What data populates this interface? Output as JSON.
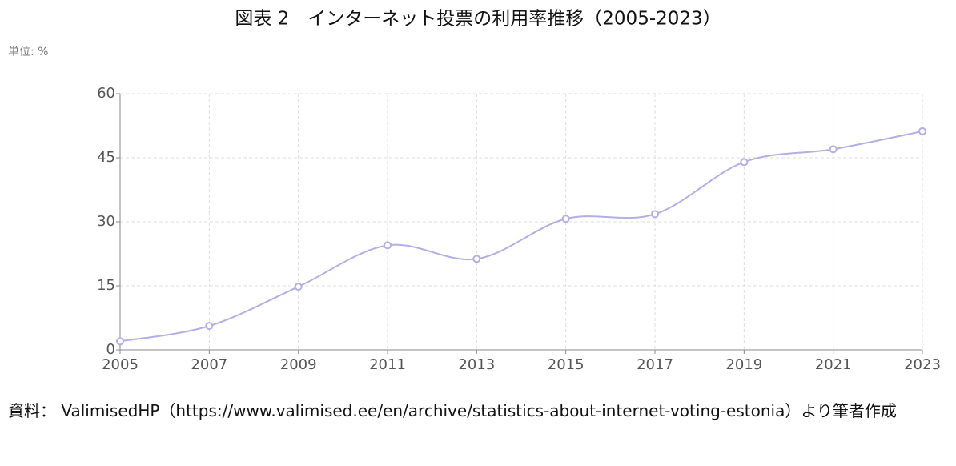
{
  "chart_data": {
    "type": "line",
    "title": "図表 2　インターネット投票の利用率推移（2005-2023）",
    "unit_label": "単位: %",
    "source": "資料： ValimisedHP（https://www.valimised.ee/en/archive/statistics-about-internet-voting-estonia）より筆者作成",
    "x": [
      2005,
      2007,
      2009,
      2011,
      2013,
      2015,
      2017,
      2019,
      2021,
      2023
    ],
    "series": [
      {
        "name": "利用率",
        "color": "#b3aee6",
        "values": [
          2.0,
          5.6,
          14.8,
          24.5,
          21.3,
          30.7,
          31.8,
          44.0,
          47.0,
          51.2
        ]
      }
    ],
    "xlim": [
      2005,
      2023
    ],
    "xticks": [
      2005,
      2007,
      2009,
      2011,
      2013,
      2015,
      2017,
      2019,
      2021,
      2023
    ],
    "ylim": [
      0,
      60
    ],
    "yticks": [
      0,
      15,
      30,
      45,
      60
    ],
    "grid": true
  }
}
